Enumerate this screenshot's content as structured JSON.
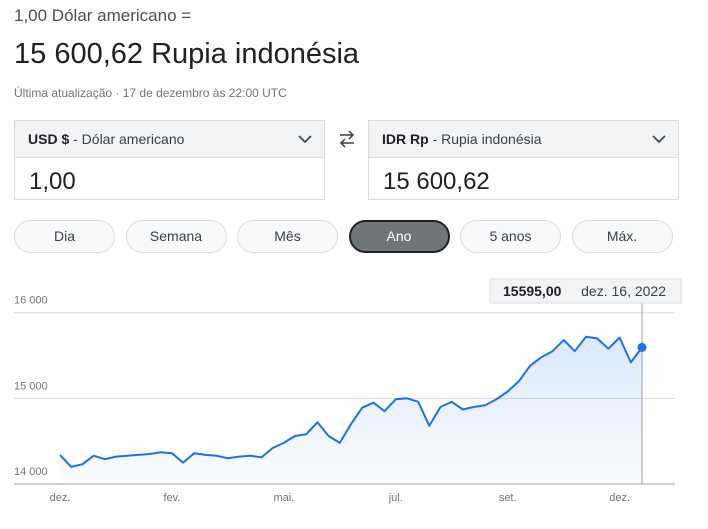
{
  "header": {
    "from_line": "1,00 Dólar americano =",
    "result": "15 600,62 Rupia indonésia",
    "updated": "Última atualização · 17 de dezembro às 22:00 UTC"
  },
  "converter": {
    "from": {
      "code": "USD $",
      "name": "- Dólar americano",
      "amount": "1,00"
    },
    "to": {
      "code": "IDR Rp",
      "name": "- Rupia indonésia",
      "amount": "15 600,62"
    }
  },
  "ranges": [
    "Dia",
    "Semana",
    "Mês",
    "Ano",
    "5 anos",
    "Máx."
  ],
  "active_range": 3,
  "chart_data": {
    "type": "line",
    "categories": [
      "dez.",
      null,
      null,
      null,
      null,
      null,
      null,
      null,
      null,
      null,
      "fev.",
      null,
      null,
      null,
      null,
      null,
      null,
      null,
      null,
      null,
      "mai.",
      null,
      null,
      null,
      null,
      null,
      null,
      null,
      null,
      null,
      "jul.",
      null,
      null,
      null,
      null,
      null,
      null,
      null,
      null,
      null,
      "set.",
      null,
      null,
      null,
      null,
      null,
      null,
      null,
      null,
      null,
      "dez.",
      null,
      null
    ],
    "values": [
      14340,
      14200,
      14230,
      14330,
      14290,
      14320,
      14330,
      14340,
      14350,
      14370,
      14360,
      14250,
      14360,
      14340,
      14330,
      14300,
      14320,
      14330,
      14310,
      14420,
      14480,
      14560,
      14580,
      14720,
      14560,
      14480,
      14700,
      14890,
      14950,
      14850,
      14990,
      15000,
      14960,
      14680,
      14900,
      14960,
      14870,
      14900,
      14920,
      14990,
      15080,
      15200,
      15380,
      15480,
      15550,
      15680,
      15550,
      15720,
      15700,
      15580,
      15710,
      15420,
      15595
    ],
    "color": "#1a73e8",
    "ylim": [
      14000,
      16300
    ],
    "yticks": [
      {
        "value": 14000,
        "label": "14 000"
      },
      {
        "value": 15000,
        "label": "15 000"
      },
      {
        "value": 16000,
        "label": "16 000"
      }
    ],
    "grid": true,
    "highlight": {
      "value": 15595,
      "label": "15595,00",
      "date": "dez. 16, 2022"
    }
  }
}
